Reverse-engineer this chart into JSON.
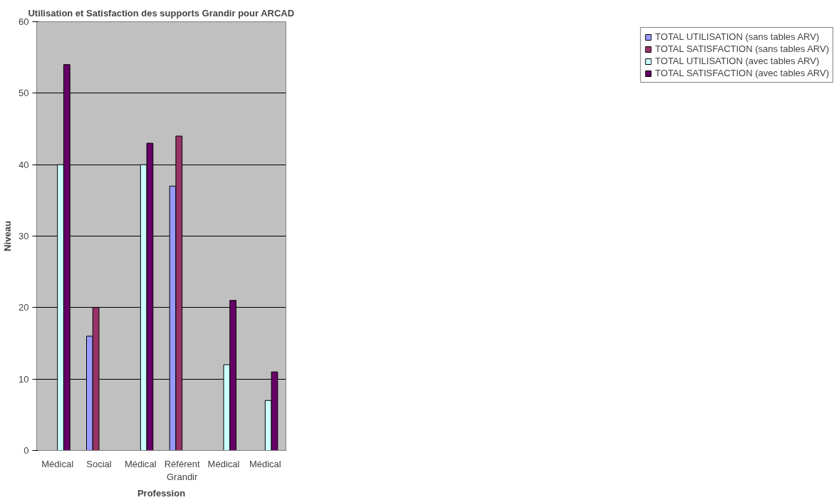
{
  "chart_data": {
    "type": "bar",
    "title": "Utilisation et Satisfaction des supports Grandir pour ARCAD",
    "xlabel": "Profession",
    "ylabel": "Niveau",
    "categories": [
      "Médical",
      "Social",
      "Médical",
      "Référent Grandir",
      "Médical",
      "Médical"
    ],
    "series": [
      {
        "name": "TOTAL UTILISATION (sans tables ARV)",
        "color": "#9999ff",
        "values": [
          null,
          16,
          null,
          37,
          null,
          null
        ]
      },
      {
        "name": "TOTAL SATISFACTION (sans tables ARV)",
        "color": "#993366",
        "values": [
          null,
          20,
          null,
          44,
          null,
          null
        ]
      },
      {
        "name": "TOTAL UTILISATION (avec tables ARV)",
        "color": "#ccffff",
        "values": [
          40,
          null,
          40,
          null,
          12,
          7
        ]
      },
      {
        "name": "TOTAL SATISFACTION (avec tables ARV)",
        "color": "#660066",
        "values": [
          54,
          null,
          43,
          null,
          21,
          11
        ]
      }
    ],
    "ylim": [
      0,
      60
    ],
    "yticks": [
      0,
      10,
      20,
      30,
      40,
      50,
      60
    ],
    "grid": "y",
    "legend": "right"
  }
}
